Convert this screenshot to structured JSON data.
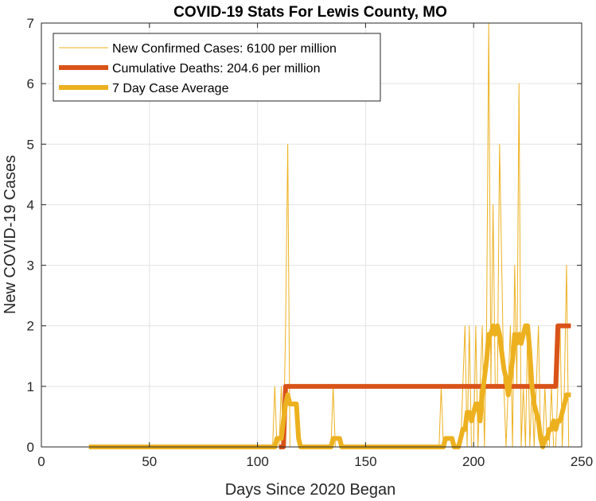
{
  "chart_data": {
    "type": "line",
    "title": "COVID-19 Stats For Lewis County, MO",
    "xlabel": "Days Since 2020 Began",
    "ylabel": "New COVID-19 Cases",
    "xlim": [
      0,
      250
    ],
    "ylim": [
      0,
      7
    ],
    "xticks": [
      0,
      50,
      100,
      150,
      200,
      250
    ],
    "yticks": [
      0,
      1,
      2,
      3,
      4,
      5,
      6,
      7
    ],
    "grid": true,
    "legend_position": "top-left",
    "series": [
      {
        "name": "New Confirmed Cases: 6100 per million",
        "color": "#EDB120",
        "width": "thin",
        "x": [
          22,
          107,
          108,
          109,
          110,
          111,
          112,
          113,
          114,
          115,
          130,
          134,
          135,
          136,
          150,
          184,
          185,
          186,
          190,
          194,
          195,
          196,
          197,
          198,
          199,
          200,
          201,
          202,
          203,
          204,
          205,
          206,
          207,
          208,
          209,
          210,
          211,
          212,
          213,
          214,
          215,
          216,
          217,
          218,
          219,
          220,
          221,
          222,
          223,
          224,
          225,
          226,
          227,
          228,
          229,
          230,
          231,
          232,
          233,
          234,
          235,
          236,
          237,
          238,
          239,
          240,
          241,
          242,
          243,
          244,
          245
        ],
        "y": [
          0,
          0,
          1,
          0,
          0,
          1,
          0,
          2,
          5,
          0,
          0,
          0,
          1,
          0,
          0,
          0,
          1,
          0,
          0,
          0,
          1,
          2,
          0,
          2,
          0,
          0,
          2,
          0,
          1,
          2,
          0,
          2,
          7,
          1,
          4,
          1,
          1,
          5,
          3,
          1,
          0,
          1,
          2,
          0,
          3,
          1,
          6,
          0,
          1,
          0,
          2,
          0,
          1,
          0,
          1,
          2,
          0,
          0,
          1,
          0,
          0,
          1,
          0,
          0,
          1,
          2,
          0,
          1,
          3,
          0,
          0
        ]
      },
      {
        "name": "Cumulative Deaths: 204.6 per million",
        "color": "#D95319",
        "width": "thick",
        "x": [
          110,
          112,
          113,
          238,
          239,
          245
        ],
        "y": [
          0,
          0,
          1,
          1,
          2,
          2
        ]
      },
      {
        "name": "7 Day Case Average",
        "color": "#EDB120",
        "width": "thick",
        "x": [
          22,
          108,
          109,
          111,
          112,
          113,
          114,
          115,
          116,
          117,
          118,
          119,
          120,
          121,
          134,
          135,
          136,
          137,
          138,
          139,
          186,
          187,
          188,
          189,
          190,
          191,
          192,
          193,
          194,
          195,
          196,
          197,
          198,
          199,
          200,
          201,
          202,
          203,
          204,
          205,
          206,
          207,
          208,
          209,
          210,
          211,
          212,
          213,
          214,
          215,
          216,
          217,
          218,
          219,
          220,
          221,
          222,
          223,
          224,
          225,
          226,
          227,
          228,
          229,
          230,
          231,
          232,
          233,
          234,
          235,
          236,
          237,
          238,
          239,
          240,
          241,
          242,
          243,
          244,
          245
        ],
        "y": [
          0,
          0,
          0.14,
          0.14,
          0.43,
          0.71,
          0.86,
          0.71,
          0.71,
          0.71,
          0.71,
          0.14,
          0,
          0,
          0,
          0.14,
          0.14,
          0.14,
          0.14,
          0,
          0,
          0.14,
          0.14,
          0.14,
          0.14,
          0,
          0,
          0,
          0.14,
          0.29,
          0.29,
          0.57,
          0.57,
          0.43,
          0.57,
          0.71,
          0.71,
          0.43,
          0.86,
          1.14,
          1.43,
          1.86,
          1.86,
          2.0,
          1.86,
          2.0,
          1.86,
          1.57,
          1.29,
          1.14,
          0.86,
          1.14,
          1.43,
          1.86,
          1.71,
          1.86,
          1.71,
          1.86,
          2.0,
          2.0,
          1.57,
          1.0,
          0.71,
          0.57,
          0.43,
          0.14,
          0,
          0.14,
          0.14,
          0.29,
          0.29,
          0.43,
          0.29,
          0.43,
          0.43,
          0.57,
          0.71,
          0.86,
          0.86,
          0.86
        ]
      }
    ]
  }
}
